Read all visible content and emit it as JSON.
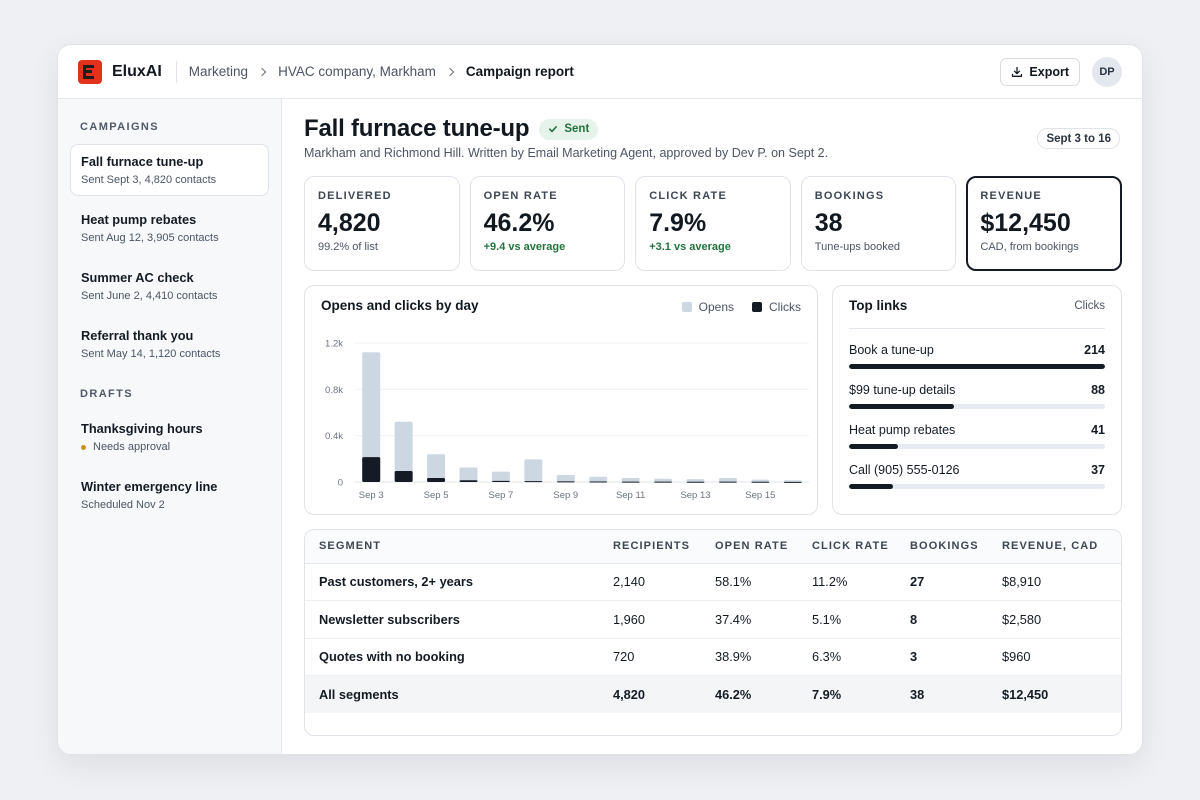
{
  "app": {
    "name": "EluxAI"
  },
  "breadcrumb": [
    "Marketing",
    "HVAC company, Markham",
    "Campaign report"
  ],
  "header": {
    "export_label": "Export",
    "avatar_initials": "DP"
  },
  "sidebar": {
    "campaigns_heading": "CAMPAIGNS",
    "campaigns": [
      {
        "title": "Fall furnace tune-up",
        "subtitle": "Sent Sept 3, 4,820 contacts",
        "active": true
      },
      {
        "title": "Heat pump rebates",
        "subtitle": "Sent Aug 12, 3,905 contacts"
      },
      {
        "title": "Summer AC check",
        "subtitle": "Sent June 2, 4,410 contacts"
      },
      {
        "title": "Referral thank you",
        "subtitle": "Sent May 14, 1,120 contacts"
      }
    ],
    "drafts_heading": "DRAFTS",
    "drafts": [
      {
        "title": "Thanksgiving hours",
        "subtitle": "Needs approval",
        "status_color": "#c9951e"
      },
      {
        "title": "Winter emergency line",
        "subtitle": "Scheduled Nov 2"
      }
    ]
  },
  "report": {
    "title": "Fall furnace tune-up",
    "status": "Sent",
    "subtitle": "Markham and Richmond Hill. Written by Email Marketing Agent, approved by Dev P. on Sept 2.",
    "date_range": "Sept 3 to 16"
  },
  "kpis": [
    {
      "label": "DELIVERED",
      "value": "4,820",
      "sub": "99.2% of list"
    },
    {
      "label": "OPEN RATE",
      "value": "46.2%",
      "sub": "+9.4 vs average",
      "positive": true
    },
    {
      "label": "CLICK RATE",
      "value": "7.9%",
      "sub": "+3.1 vs average",
      "positive": true
    },
    {
      "label": "BOOKINGS",
      "value": "38",
      "sub": "Tune-ups booked"
    },
    {
      "label": "REVENUE",
      "value": "$12,450",
      "sub": "CAD, from bookings",
      "selected": true
    }
  ],
  "chart_data": {
    "type": "bar",
    "title": "Opens and clicks by day",
    "categories": [
      "Sep 3",
      "Sep 4",
      "Sep 5",
      "Sep 6",
      "Sep 7",
      "Sep 8",
      "Sep 9",
      "Sep 10",
      "Sep 11",
      "Sep 12",
      "Sep 13",
      "Sep 14",
      "Sep 15",
      "Sep 16"
    ],
    "x_tick_labels": [
      "Sep 3",
      "",
      "Sep 5",
      "",
      "Sep 7",
      "",
      "Sep 9",
      "",
      "Sep 11",
      "",
      "Sep 13",
      "",
      "Sep 15",
      ""
    ],
    "series": [
      {
        "name": "Opens",
        "color": "#cdd7e2",
        "values": [
          1120,
          520,
          240,
          125,
          90,
          195,
          60,
          45,
          35,
          28,
          25,
          35,
          20,
          15
        ]
      },
      {
        "name": "Clicks",
        "color": "#141b24",
        "values": [
          215,
          95,
          35,
          15,
          10,
          8,
          5,
          4,
          3,
          3,
          2,
          3,
          2,
          1
        ]
      }
    ],
    "y_ticks": [
      "0",
      "0.4k",
      "0.8k",
      "1.2k"
    ],
    "y_tick_values": [
      0,
      400,
      800,
      1200
    ],
    "ylim": [
      0,
      1200
    ],
    "overlapping": true,
    "grid": true,
    "legend_position": "top-right"
  },
  "top_links": {
    "title": "Top links",
    "column_label": "Clicks",
    "items": [
      {
        "label": "Book a tune-up",
        "clicks": "214",
        "fraction": 1.0
      },
      {
        "label": "$99 tune-up details",
        "clicks": "88",
        "fraction": 0.41
      },
      {
        "label": "Heat pump rebates",
        "clicks": "41",
        "fraction": 0.19
      },
      {
        "label": "Call (905) 555-0126",
        "clicks": "37",
        "fraction": 0.17
      }
    ]
  },
  "segments": {
    "columns": [
      "SEGMENT",
      "RECIPIENTS",
      "OPEN RATE",
      "CLICK RATE",
      "BOOKINGS",
      "REVENUE, CAD"
    ],
    "rows": [
      [
        "Past customers, 2+ years",
        "2,140",
        "58.1%",
        "11.2%",
        "27",
        "$8,910"
      ],
      [
        "Newsletter subscribers",
        "1,960",
        "37.4%",
        "5.1%",
        "8",
        "$2,580"
      ],
      [
        "Quotes with no booking",
        "720",
        "38.9%",
        "6.3%",
        "3",
        "$960"
      ]
    ],
    "total": [
      "All segments",
      "4,820",
      "46.2%",
      "7.9%",
      "38",
      "$12,450"
    ]
  }
}
